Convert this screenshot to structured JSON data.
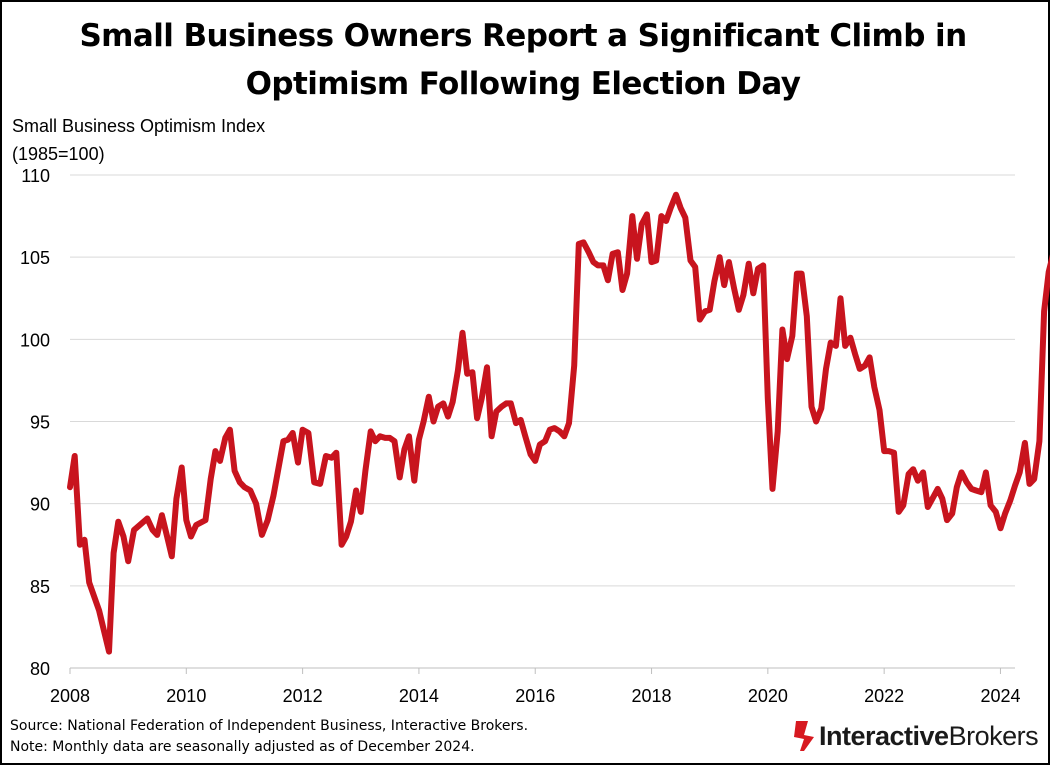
{
  "title": "Small Business Owners Report a Significant Climb in Optimism Following Election Day",
  "source": "Source:  National Federation of Independent Business, Interactive Brokers.",
  "note": "Note: Monthly data are seasonally adjusted as of December 2024.",
  "logo": {
    "bold": "Interactive",
    "light": "Brokers"
  },
  "colors": {
    "line": "#c8141e",
    "grid": "#d9d9d9",
    "logo_mark": "#d71920"
  },
  "chart_data": {
    "type": "line",
    "title": "Small Business Owners Report a Significant Climb in Optimism Following Election Day",
    "ylabel": "Small Business Optimism Index",
    "ylabel_sub": "(1985=100)",
    "xlabel": "",
    "ylim": [
      80,
      110
    ],
    "xlim": [
      2008,
      2024.25
    ],
    "yticks": [
      80,
      85,
      90,
      95,
      100,
      105,
      110
    ],
    "xticks": [
      2008,
      2010,
      2012,
      2014,
      2016,
      2018,
      2020,
      2022,
      2024
    ],
    "grid": true,
    "series": [
      {
        "name": "Small Business Optimism Index",
        "points": [
          [
            2008.0,
            91.0
          ],
          [
            2008.08,
            92.9
          ],
          [
            2008.17,
            87.5
          ],
          [
            2008.25,
            87.8
          ],
          [
            2008.33,
            85.2
          ],
          [
            2008.5,
            83.5
          ],
          [
            2008.67,
            81.0
          ],
          [
            2008.75,
            87.0
          ],
          [
            2008.83,
            88.9
          ],
          [
            2008.92,
            88.0
          ],
          [
            2009.0,
            86.5
          ],
          [
            2009.1,
            88.4
          ],
          [
            2009.2,
            88.7
          ],
          [
            2009.33,
            89.1
          ],
          [
            2009.42,
            88.4
          ],
          [
            2009.5,
            88.1
          ],
          [
            2009.58,
            89.3
          ],
          [
            2009.67,
            88.0
          ],
          [
            2009.75,
            86.8
          ],
          [
            2009.83,
            90.3
          ],
          [
            2009.92,
            92.2
          ],
          [
            2010.0,
            89.0
          ],
          [
            2010.08,
            88.0
          ],
          [
            2010.17,
            88.7
          ],
          [
            2010.33,
            89.0
          ],
          [
            2010.42,
            91.5
          ],
          [
            2010.5,
            93.2
          ],
          [
            2010.58,
            92.6
          ],
          [
            2010.67,
            94.0
          ],
          [
            2010.75,
            94.5
          ],
          [
            2010.83,
            92.0
          ],
          [
            2010.92,
            91.3
          ],
          [
            2011.0,
            91.0
          ],
          [
            2011.1,
            90.8
          ],
          [
            2011.2,
            90.0
          ],
          [
            2011.3,
            88.1
          ],
          [
            2011.4,
            89.0
          ],
          [
            2011.5,
            90.5
          ],
          [
            2011.67,
            93.8
          ],
          [
            2011.75,
            93.9
          ],
          [
            2011.83,
            94.3
          ],
          [
            2011.92,
            92.5
          ],
          [
            2012.0,
            94.5
          ],
          [
            2012.1,
            94.3
          ],
          [
            2012.2,
            91.3
          ],
          [
            2012.3,
            91.2
          ],
          [
            2012.4,
            92.9
          ],
          [
            2012.5,
            92.8
          ],
          [
            2012.58,
            93.1
          ],
          [
            2012.67,
            87.5
          ],
          [
            2012.75,
            88.0
          ],
          [
            2012.83,
            88.9
          ],
          [
            2012.92,
            90.8
          ],
          [
            2013.0,
            89.5
          ],
          [
            2013.08,
            92.0
          ],
          [
            2013.17,
            94.4
          ],
          [
            2013.25,
            93.8
          ],
          [
            2013.33,
            94.1
          ],
          [
            2013.42,
            94.0
          ],
          [
            2013.5,
            94.0
          ],
          [
            2013.58,
            93.8
          ],
          [
            2013.67,
            91.6
          ],
          [
            2013.75,
            93.3
          ],
          [
            2013.83,
            94.1
          ],
          [
            2013.92,
            91.4
          ],
          [
            2014.0,
            93.9
          ],
          [
            2014.08,
            95.0
          ],
          [
            2014.17,
            96.5
          ],
          [
            2014.25,
            95.0
          ],
          [
            2014.33,
            95.9
          ],
          [
            2014.42,
            96.1
          ],
          [
            2014.5,
            95.3
          ],
          [
            2014.58,
            96.2
          ],
          [
            2014.67,
            98.1
          ],
          [
            2014.75,
            100.4
          ],
          [
            2014.83,
            97.9
          ],
          [
            2014.92,
            98.0
          ],
          [
            2015.0,
            95.2
          ],
          [
            2015.08,
            96.4
          ],
          [
            2015.17,
            98.3
          ],
          [
            2015.25,
            94.1
          ],
          [
            2015.33,
            95.6
          ],
          [
            2015.42,
            95.9
          ],
          [
            2015.5,
            96.1
          ],
          [
            2015.58,
            96.1
          ],
          [
            2015.67,
            94.9
          ],
          [
            2015.75,
            95.1
          ],
          [
            2015.83,
            94.1
          ],
          [
            2015.92,
            93.0
          ],
          [
            2016.0,
            92.6
          ],
          [
            2016.08,
            93.6
          ],
          [
            2016.17,
            93.8
          ],
          [
            2016.25,
            94.5
          ],
          [
            2016.33,
            94.6
          ],
          [
            2016.42,
            94.4
          ],
          [
            2016.5,
            94.1
          ],
          [
            2016.58,
            94.9
          ],
          [
            2016.67,
            98.4
          ],
          [
            2016.75,
            105.8
          ],
          [
            2016.83,
            105.9
          ],
          [
            2016.92,
            105.3
          ],
          [
            2017.0,
            104.7
          ],
          [
            2017.08,
            104.5
          ],
          [
            2017.17,
            104.5
          ],
          [
            2017.25,
            103.6
          ],
          [
            2017.33,
            105.2
          ],
          [
            2017.42,
            105.3
          ],
          [
            2017.5,
            103.0
          ],
          [
            2017.58,
            104.0
          ],
          [
            2017.67,
            107.5
          ],
          [
            2017.75,
            104.9
          ],
          [
            2017.83,
            107.0
          ],
          [
            2017.92,
            107.6
          ],
          [
            2018.0,
            104.7
          ],
          [
            2018.08,
            104.8
          ],
          [
            2018.17,
            107.5
          ],
          [
            2018.25,
            107.2
          ],
          [
            2018.33,
            108.0
          ],
          [
            2018.42,
            108.8
          ],
          [
            2018.5,
            108.0
          ],
          [
            2018.58,
            107.4
          ],
          [
            2018.67,
            104.8
          ],
          [
            2018.75,
            104.4
          ],
          [
            2018.83,
            101.2
          ],
          [
            2018.92,
            101.7
          ],
          [
            2019.0,
            101.8
          ],
          [
            2019.08,
            103.5
          ],
          [
            2019.17,
            105.0
          ],
          [
            2019.25,
            103.3
          ],
          [
            2019.33,
            104.7
          ],
          [
            2019.42,
            103.1
          ],
          [
            2019.5,
            101.8
          ],
          [
            2019.58,
            102.7
          ],
          [
            2019.67,
            104.6
          ],
          [
            2019.75,
            102.8
          ],
          [
            2019.83,
            104.3
          ],
          [
            2019.92,
            104.5
          ],
          [
            2020.0,
            96.4
          ],
          [
            2020.08,
            90.9
          ],
          [
            2020.17,
            94.4
          ],
          [
            2020.25,
            100.6
          ],
          [
            2020.33,
            98.8
          ],
          [
            2020.42,
            100.2
          ],
          [
            2020.5,
            104.0
          ],
          [
            2020.58,
            104.0
          ],
          [
            2020.67,
            101.4
          ],
          [
            2020.75,
            95.9
          ],
          [
            2020.83,
            95.0
          ],
          [
            2020.92,
            95.8
          ],
          [
            2021.0,
            98.2
          ],
          [
            2021.08,
            99.8
          ],
          [
            2021.17,
            99.6
          ],
          [
            2021.25,
            102.5
          ],
          [
            2021.33,
            99.6
          ],
          [
            2021.42,
            100.1
          ],
          [
            2021.5,
            99.1
          ],
          [
            2021.58,
            98.2
          ],
          [
            2021.67,
            98.4
          ],
          [
            2021.75,
            98.9
          ],
          [
            2021.83,
            97.1
          ],
          [
            2021.92,
            95.7
          ],
          [
            2022.0,
            93.2
          ],
          [
            2022.08,
            93.2
          ],
          [
            2022.17,
            93.1
          ],
          [
            2022.25,
            89.5
          ],
          [
            2022.33,
            89.9
          ],
          [
            2022.42,
            91.8
          ],
          [
            2022.5,
            92.1
          ],
          [
            2022.58,
            91.4
          ],
          [
            2022.67,
            91.9
          ],
          [
            2022.75,
            89.8
          ],
          [
            2022.83,
            90.3
          ],
          [
            2022.92,
            90.9
          ],
          [
            2023.0,
            90.3
          ],
          [
            2023.08,
            89.0
          ],
          [
            2023.17,
            89.4
          ],
          [
            2023.25,
            91.0
          ],
          [
            2023.33,
            91.9
          ],
          [
            2023.42,
            91.3
          ],
          [
            2023.5,
            90.9
          ],
          [
            2023.58,
            90.8
          ],
          [
            2023.67,
            90.7
          ],
          [
            2023.75,
            91.9
          ],
          [
            2023.83,
            89.9
          ],
          [
            2023.92,
            89.5
          ],
          [
            2024.0,
            88.5
          ],
          [
            2024.08,
            89.4
          ],
          [
            2024.17,
            90.2
          ],
          [
            2024.25,
            91.1
          ],
          [
            2024.33,
            91.9
          ],
          [
            2024.42,
            93.7
          ],
          [
            2024.5,
            91.2
          ],
          [
            2024.58,
            91.5
          ],
          [
            2024.67,
            93.8
          ],
          [
            2024.75,
            101.7
          ],
          [
            2024.83,
            104.1
          ],
          [
            2024.9,
            105.1
          ]
        ]
      }
    ]
  }
}
